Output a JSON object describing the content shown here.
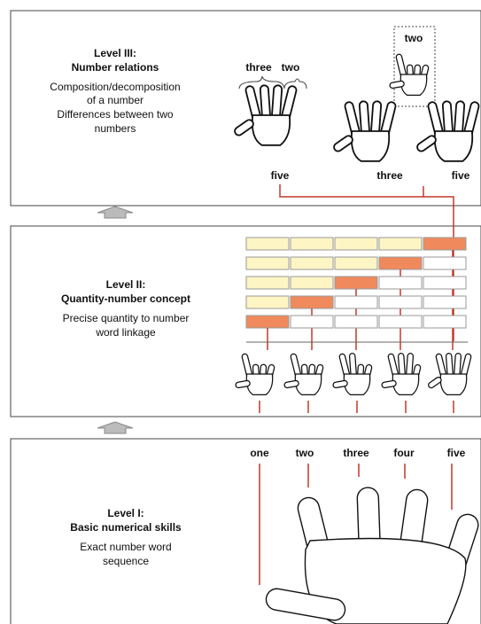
{
  "level3": {
    "title": "Level III:",
    "subtitle": "Number relations",
    "description": [
      "Composition/decomposition",
      "of a number",
      "Differences between two",
      "numbers"
    ],
    "brace_labels": [
      "three",
      "two"
    ],
    "box_label": "two",
    "hand_labels": [
      "five",
      "three",
      "five"
    ]
  },
  "level2": {
    "title": "Level II:",
    "subtitle": "Quantity-number concept",
    "description": [
      "Precise quantity to number",
      "word linkage"
    ]
  },
  "level1": {
    "title": "Level I:",
    "subtitle": "Basic numerical skills",
    "description": [
      "Exact number word",
      "sequence"
    ],
    "number_words": [
      "one",
      "two",
      "three",
      "four",
      "five"
    ]
  }
}
